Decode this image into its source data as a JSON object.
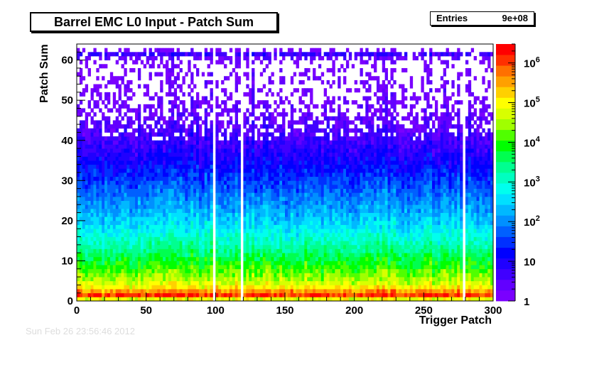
{
  "title": "Barrel EMC L0 Input - Patch Sum",
  "stats": {
    "entries_label": "Entries",
    "entries_value": "9e+08"
  },
  "faded_date": "Sun Feb 26 23:56:46 2012",
  "chart_data": {
    "type": "heatmap",
    "title": "Barrel EMC L0 Input - Patch Sum",
    "xlabel": "Trigger Patch",
    "ylabel": "Patch Sum",
    "xlim": [
      0,
      300
    ],
    "ylim": [
      0,
      64
    ],
    "x_ticks": [
      0,
      50,
      100,
      150,
      200,
      250,
      300
    ],
    "y_ticks": [
      0,
      10,
      20,
      30,
      40,
      50,
      60
    ],
    "z_scale": "log",
    "zlim": [
      1,
      3000000
    ],
    "z_tick_labels": [
      {
        "value": 1,
        "label": "1"
      },
      {
        "value": 10,
        "label": "10"
      },
      {
        "value": 100,
        "label": "10^2"
      },
      {
        "value": 1000,
        "label": "10^3"
      },
      {
        "value": 10000,
        "label": "10^4"
      },
      {
        "value": 100000,
        "label": "10^5"
      },
      {
        "value": 1000000,
        "label": "10^6"
      }
    ],
    "palette": [
      "#7a00ff",
      "#6200ff",
      "#4000ff",
      "#2000ff",
      "#0000ff",
      "#0030ff",
      "#0060ff",
      "#0090ff",
      "#00b8ff",
      "#00e0ff",
      "#00ffee",
      "#00ffc0",
      "#00ff90",
      "#00ff50",
      "#00ff00",
      "#50ff00",
      "#a0ff00",
      "#d8ff00",
      "#ffff00",
      "#ffd000",
      "#ffa000",
      "#ff7000",
      "#ff3000",
      "#ff0000"
    ],
    "empty_columns": [
      99,
      118,
      279
    ],
    "density_profile": [
      {
        "y": 0,
        "log_counts": 3.5
      },
      {
        "y": 1,
        "log_counts": 6.3
      },
      {
        "y": 2,
        "log_counts": 6.0
      },
      {
        "y": 3,
        "log_counts": 5.2
      },
      {
        "y": 5,
        "log_counts": 4.6
      },
      {
        "y": 10,
        "log_counts": 3.8
      },
      {
        "y": 15,
        "log_counts": 3.1
      },
      {
        "y": 20,
        "log_counts": 2.5
      },
      {
        "y": 25,
        "log_counts": 2.0
      },
      {
        "y": 30,
        "log_counts": 1.55
      },
      {
        "y": 35,
        "log_counts": 1.1
      },
      {
        "y": 40,
        "log_counts": 0.7
      },
      {
        "y": 45,
        "log_counts": 0.35
      },
      {
        "y": 50,
        "log_counts": 0.15
      },
      {
        "y": 55,
        "log_counts": 0.07
      },
      {
        "y": 60,
        "log_counts": 0.05
      },
      {
        "y": 62,
        "log_counts": 0.9
      },
      {
        "y": 63,
        "log_counts": -1
      }
    ]
  }
}
